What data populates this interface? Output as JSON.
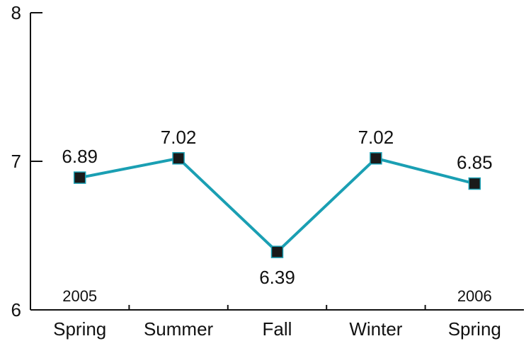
{
  "chart_data": {
    "type": "line",
    "categories": [
      "Spring",
      "Summer",
      "Fall",
      "Winter",
      "Spring"
    ],
    "year_annotations": [
      {
        "index": 0,
        "text": "2005"
      },
      {
        "index": 4,
        "text": "2006"
      }
    ],
    "series": [
      {
        "values": [
          6.89,
          7.02,
          6.39,
          7.02,
          6.85
        ],
        "data_labels": [
          "6.89",
          "7.02",
          "6.39",
          "7.02",
          "6.85"
        ],
        "line_color": "#1a9fb3",
        "marker_color": "#1a1a1a",
        "marker": "square"
      }
    ],
    "ylim": [
      6,
      8
    ],
    "yticks": [
      6,
      7,
      8
    ],
    "ytick_labels": [
      "6",
      "7",
      "8"
    ],
    "grid": false,
    "legend": false
  }
}
